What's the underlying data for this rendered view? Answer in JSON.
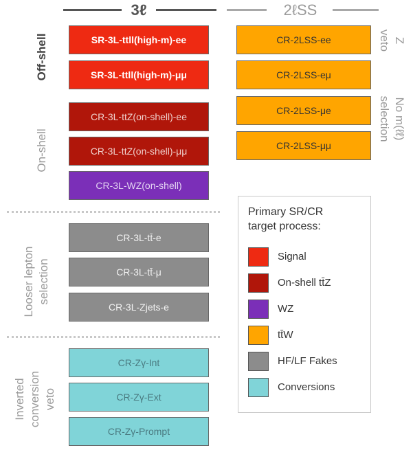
{
  "header": {
    "left_title": "3ℓ",
    "right_title": "2ℓSS"
  },
  "left_groups": {
    "offshell": "Off-shell",
    "onshell": "On-shell",
    "looser": [
      "Looser lepton",
      "selection"
    ],
    "inverted": [
      "Inverted",
      "conversion",
      "veto"
    ]
  },
  "right_groups": {
    "zveto": [
      "Z",
      "veto"
    ],
    "nomll": [
      "No m(ℓℓ)",
      "selection"
    ]
  },
  "left_boxes": [
    {
      "label": "SR-3L-ttll(high-m)-ee",
      "color": "#ee2a12",
      "text": "#ffffff",
      "bold": true
    },
    {
      "label": "SR-3L-ttll(high-m)-μμ",
      "color": "#ee2a12",
      "text": "#ffffff",
      "bold": true
    },
    {
      "label": "CR-3L-ttZ(on-shell)-ee",
      "color": "#b0160a",
      "text": "#f0d0cc",
      "bold": false
    },
    {
      "label": "CR-3L-ttZ(on-shell)-μμ",
      "color": "#b0160a",
      "text": "#f0d0cc",
      "bold": false
    },
    {
      "label": "CR-3L-WZ(on-shell)",
      "color": "#7b2fb8",
      "text": "#e4d4f2",
      "bold": false
    },
    {
      "label": "CR-3L-tt̄-e",
      "color": "#8c8c8c",
      "text": "#f2f2f2",
      "bold": false
    },
    {
      "label": "CR-3L-tt̄-μ",
      "color": "#8c8c8c",
      "text": "#f2f2f2",
      "bold": false
    },
    {
      "label": "CR-3L-Zjets-e",
      "color": "#8c8c8c",
      "text": "#f2f2f2",
      "bold": false
    },
    {
      "label": "CR-Zγ-Int",
      "color": "#80d4d8",
      "text": "#4a7a80",
      "bold": false
    },
    {
      "label": "CR-Zγ-Ext",
      "color": "#80d4d8",
      "text": "#4a7a80",
      "bold": false
    },
    {
      "label": "CR-Zγ-Prompt",
      "color": "#80d4d8",
      "text": "#4a7a80",
      "bold": false
    }
  ],
  "right_boxes": [
    {
      "label": "CR-2LSS-ee",
      "color": "#ffa500"
    },
    {
      "label": "CR-2LSS-eμ",
      "color": "#ffa500"
    },
    {
      "label": "CR-2LSS-μe",
      "color": "#ffa500"
    },
    {
      "label": "CR-2LSS-μμ",
      "color": "#ffa500"
    }
  ],
  "legend": {
    "title_lines": [
      "Primary SR/CR",
      "target process:"
    ],
    "items": [
      {
        "label": "Signal",
        "color": "#ee2a12"
      },
      {
        "label": "On-shell tt̄Z",
        "color": "#b0160a"
      },
      {
        "label": "WZ",
        "color": "#7b2fb8"
      },
      {
        "label": "tt̄W",
        "color": "#ffa500"
      },
      {
        "label": "HF/LF Fakes",
        "color": "#8c8c8c"
      },
      {
        "label": "Conversions",
        "color": "#80d4d8"
      }
    ]
  },
  "colors": {
    "left_header": "#555555",
    "right_header": "#9a9a9a",
    "side_text": "#9a9a9a",
    "offshell_text": "#444444"
  }
}
